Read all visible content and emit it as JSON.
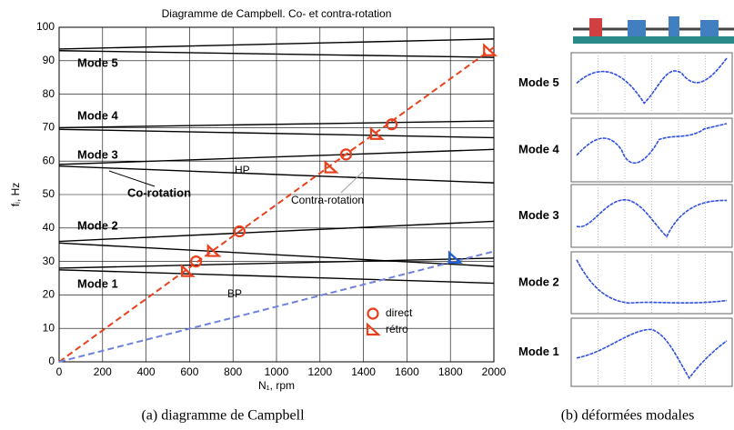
{
  "chart_data": {
    "type": "line",
    "title": "Diagramme de Campbell. Co- et contra-rotation",
    "x_label": "N₁, rpm",
    "y_label": "fᵢ, Hz",
    "xlim": [
      0,
      2000
    ],
    "xticks": [
      0,
      200,
      400,
      600,
      800,
      1000,
      1200,
      1400,
      1600,
      1800,
      2000
    ],
    "ylim": [
      0,
      100
    ],
    "yticks": [
      0,
      10,
      20,
      30,
      40,
      50,
      60,
      70,
      80,
      90,
      100
    ],
    "grid": true,
    "annotations": [
      "Mode 5",
      "Mode 4",
      "Mode 3",
      "Mode 2",
      "Mode 1",
      "Co-rotation",
      "Contra-rotation",
      "HP",
      "BP"
    ],
    "series": [
      {
        "color": "#000000",
        "x": [
          0,
          2000
        ],
        "values": [
          28,
          31
        ]
      },
      {
        "color": "#000000",
        "x": [
          0,
          2000
        ],
        "values": [
          27.5,
          23.5
        ]
      },
      {
        "color": "#000000",
        "x": [
          0,
          2000
        ],
        "values": [
          36,
          42
        ]
      },
      {
        "color": "#000000",
        "x": [
          0,
          2000
        ],
        "values": [
          35.5,
          28.5
        ]
      },
      {
        "color": "#000000",
        "x": [
          0,
          2000
        ],
        "values": [
          59,
          63.5
        ]
      },
      {
        "color": "#000000",
        "x": [
          0,
          2000
        ],
        "values": [
          58.5,
          53.5
        ]
      },
      {
        "color": "#000000",
        "x": [
          0,
          2000
        ],
        "values": [
          70,
          72
        ]
      },
      {
        "color": "#000000",
        "x": [
          0,
          2000
        ],
        "values": [
          69.5,
          67
        ]
      },
      {
        "color": "#000000",
        "x": [
          0,
          2000
        ],
        "values": [
          93.5,
          96.5
        ]
      },
      {
        "color": "#000000",
        "x": [
          0,
          2000
        ],
        "values": [
          93,
          91
        ]
      },
      {
        "color": "#e8401c",
        "dash": true,
        "x": [
          0,
          2000
        ],
        "values": [
          0,
          94
        ]
      },
      {
        "color": "#7080e0",
        "dash": true,
        "x": [
          0,
          2000
        ],
        "values": [
          0,
          33
        ]
      }
    ],
    "markers": [
      {
        "name": "direct",
        "marker": "circle",
        "color": "#e8401c",
        "x": [
          630,
          830,
          1320,
          1530
        ],
        "values": [
          30,
          39,
          62,
          71
        ]
      },
      {
        "name": "rétro",
        "marker": "triangle",
        "color": "#e8401c",
        "x": [
          590,
          710,
          1250,
          1460,
          1980
        ],
        "values": [
          27,
          33,
          58,
          68,
          93
        ]
      },
      {
        "marker": "triangle",
        "color": "#2060d0",
        "x": [
          1820
        ],
        "values": [
          31
        ]
      }
    ]
  },
  "mode_shapes": {
    "labels": [
      "Mode 5",
      "Mode 4",
      "Mode 3",
      "Mode 2",
      "Mode 1"
    ]
  },
  "captions": [
    "(a)  diagramme de Campbell",
    "(b)  déformées modales"
  ]
}
